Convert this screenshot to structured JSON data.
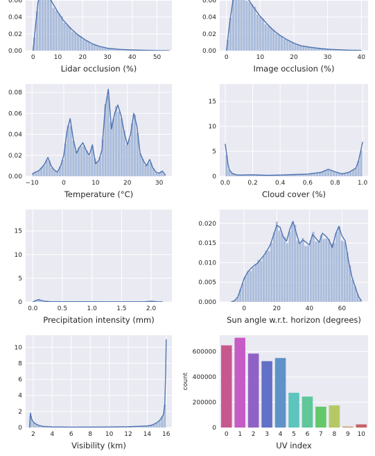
{
  "chart_data": [
    {
      "id": "lidar",
      "type": "histogram",
      "xlabel": "Lidar occlusion (%)",
      "ylabel": "",
      "xlim": [
        -3,
        56
      ],
      "ylim": [
        0,
        0.072
      ],
      "xticks": [
        "0",
        "10",
        "20",
        "30",
        "40",
        "50"
      ],
      "xtick_values": [
        0,
        10,
        20,
        30,
        40,
        50
      ],
      "yticks": [
        "0.00",
        "0.02",
        "0.04",
        "0.06"
      ],
      "ytick_values": [
        0,
        0.02,
        0.04,
        0.06
      ],
      "curve_x": [
        0,
        1,
        2,
        3,
        4,
        5,
        6,
        8,
        10,
        12,
        15,
        18,
        21,
        24,
        27,
        30,
        35,
        40,
        45,
        50,
        55
      ],
      "curve_y": [
        0.0,
        0.03,
        0.058,
        0.068,
        0.072,
        0.07,
        0.066,
        0.056,
        0.046,
        0.037,
        0.027,
        0.019,
        0.013,
        0.008,
        0.005,
        0.003,
        0.0015,
        0.0008,
        0.0004,
        0.0002,
        0.0001
      ]
    },
    {
      "id": "image",
      "type": "histogram",
      "xlabel": "Image occlusion (%)",
      "ylabel": "",
      "xlim": [
        -2,
        42
      ],
      "ylim": [
        0,
        0.072
      ],
      "xticks": [
        "0",
        "10",
        "20",
        "30",
        "40"
      ],
      "xtick_values": [
        0,
        10,
        20,
        30,
        40
      ],
      "yticks": [
        "0.00",
        "0.02",
        "0.04",
        "0.06"
      ],
      "ytick_values": [
        0,
        0.02,
        0.04,
        0.06
      ],
      "curve_x": [
        0,
        1,
        2,
        3,
        4,
        5,
        6,
        8,
        10,
        12,
        14,
        16,
        18,
        20,
        22,
        25,
        28,
        31,
        34,
        37,
        40
      ],
      "curve_y": [
        0.0,
        0.035,
        0.062,
        0.072,
        0.073,
        0.07,
        0.064,
        0.052,
        0.041,
        0.032,
        0.024,
        0.018,
        0.013,
        0.009,
        0.006,
        0.004,
        0.0025,
        0.0015,
        0.001,
        0.0005,
        0.0003
      ]
    },
    {
      "id": "temperature",
      "type": "histogram",
      "xlabel": "Temperature (°C)",
      "ylabel": "",
      "xlim": [
        -12,
        34
      ],
      "ylim": [
        0,
        0.088
      ],
      "xticks": [
        "−10",
        "0",
        "10",
        "20",
        "30"
      ],
      "xtick_values": [
        -10,
        0,
        10,
        20,
        30
      ],
      "yticks": [
        "0.00",
        "0.02",
        "0.04",
        "0.06",
        "0.08"
      ],
      "ytick_values": [
        0,
        0.02,
        0.04,
        0.06,
        0.08
      ],
      "curve_x": [
        -10,
        -9,
        -8,
        -7,
        -6,
        -5,
        -4,
        -3,
        -2,
        -1,
        0,
        1,
        2,
        3,
        4,
        5,
        6,
        7,
        8,
        9,
        10,
        11,
        12,
        13,
        14,
        15,
        16,
        17,
        18,
        19,
        20,
        21,
        22,
        23,
        24,
        25,
        26,
        27,
        28,
        29,
        30,
        31,
        32
      ],
      "curve_y": [
        0.002,
        0.004,
        0.005,
        0.008,
        0.012,
        0.018,
        0.01,
        0.006,
        0.004,
        0.01,
        0.02,
        0.043,
        0.055,
        0.035,
        0.022,
        0.028,
        0.032,
        0.025,
        0.02,
        0.03,
        0.012,
        0.015,
        0.025,
        0.065,
        0.083,
        0.045,
        0.06,
        0.068,
        0.058,
        0.042,
        0.03,
        0.04,
        0.06,
        0.048,
        0.022,
        0.015,
        0.01,
        0.016,
        0.008,
        0.004,
        0.003,
        0.005,
        0.001
      ]
    },
    {
      "id": "cloud",
      "type": "histogram",
      "xlabel": "Cloud cover (%)",
      "ylabel": "",
      "xlim": [
        -0.04,
        1.04
      ],
      "ylim": [
        0,
        18.5
      ],
      "xticks": [
        "0.0",
        "0.2",
        "0.4",
        "0.6",
        "0.8",
        "1.0"
      ],
      "xtick_values": [
        0,
        0.2,
        0.4,
        0.6,
        0.8,
        1.0
      ],
      "yticks": [
        "0",
        "5",
        "10",
        "15"
      ],
      "ytick_values": [
        0,
        5,
        10,
        15
      ],
      "curve_x": [
        0.0,
        0.01,
        0.02,
        0.03,
        0.05,
        0.08,
        0.1,
        0.2,
        0.3,
        0.4,
        0.5,
        0.6,
        0.7,
        0.75,
        0.8,
        0.85,
        0.9,
        0.95,
        0.97,
        0.99,
        1.0
      ],
      "curve_y": [
        6.5,
        4.5,
        2.5,
        1.3,
        0.6,
        0.3,
        0.25,
        0.3,
        0.2,
        0.25,
        0.35,
        0.45,
        0.8,
        1.4,
        0.9,
        0.5,
        0.8,
        1.6,
        3.0,
        5.5,
        6.9
      ]
    },
    {
      "id": "precipitation",
      "type": "histogram",
      "xlabel": "Precipitation intensity (mm)",
      "ylabel": "",
      "xlim": [
        -0.12,
        2.35
      ],
      "ylim": [
        0,
        19.5
      ],
      "xticks": [
        "0.0",
        "0.5",
        "1.0",
        "1.5",
        "2.0"
      ],
      "xtick_values": [
        0,
        0.5,
        1.0,
        1.5,
        2.0
      ],
      "yticks": [
        "0",
        "5",
        "10",
        "15"
      ],
      "ytick_values": [
        0,
        5,
        10,
        15
      ],
      "curve_x": [
        0,
        0.05,
        0.1,
        0.15,
        0.2,
        0.3,
        0.5,
        0.8,
        1.0,
        1.3,
        1.6,
        1.9,
        2.0,
        2.1,
        2.2
      ],
      "curve_y": [
        0.0,
        0.3,
        0.5,
        0.3,
        0.15,
        0.05,
        0.05,
        0.04,
        0.05,
        0.03,
        0.03,
        0.05,
        0.15,
        0.05,
        0.0
      ]
    },
    {
      "id": "sun",
      "type": "histogram",
      "xlabel": "Sun angle w.r.t. horizon (degrees)",
      "ylabel": "",
      "xlim": [
        -15,
        76
      ],
      "ylim": [
        0,
        0.0235
      ],
      "xticks": [
        "0",
        "20",
        "40",
        "60"
      ],
      "xtick_values": [
        0,
        20,
        40,
        60
      ],
      "yticks": [
        "0.000",
        "0.005",
        "0.010",
        "0.015",
        "0.020"
      ],
      "ytick_values": [
        0,
        0.005,
        0.01,
        0.015,
        0.02
      ],
      "curve_x": [
        -8,
        -6,
        -4,
        -2,
        0,
        2,
        4,
        6,
        8,
        10,
        12,
        14,
        16,
        18,
        20,
        22,
        24,
        26,
        28,
        30,
        32,
        34,
        36,
        38,
        40,
        42,
        44,
        46,
        48,
        50,
        52,
        54,
        56,
        58,
        60,
        62,
        64,
        66,
        68,
        70,
        72
      ],
      "curve_y": [
        0.0,
        0.0003,
        0.0012,
        0.0035,
        0.006,
        0.0075,
        0.0085,
        0.0092,
        0.0098,
        0.0108,
        0.0118,
        0.013,
        0.0145,
        0.017,
        0.0195,
        0.019,
        0.0165,
        0.0155,
        0.0185,
        0.0205,
        0.0175,
        0.0148,
        0.0158,
        0.0152,
        0.0145,
        0.0172,
        0.0162,
        0.0152,
        0.0175,
        0.0168,
        0.0158,
        0.0138,
        0.0172,
        0.0192,
        0.0168,
        0.0155,
        0.0105,
        0.0065,
        0.004,
        0.0015,
        0.0002
      ]
    },
    {
      "id": "visibility",
      "type": "histogram",
      "xlabel": "Visibility (km)",
      "ylabel": "",
      "xlim": [
        1.2,
        16.6
      ],
      "ylim": [
        0,
        11.5
      ],
      "xticks": [
        "2",
        "4",
        "6",
        "8",
        "10",
        "12",
        "14",
        "16"
      ],
      "xtick_values": [
        2,
        4,
        6,
        8,
        10,
        12,
        14,
        16
      ],
      "yticks": [
        "0",
        "2",
        "4",
        "6",
        "8",
        "10"
      ],
      "ytick_values": [
        0,
        2,
        4,
        6,
        8,
        10
      ],
      "curve_x": [
        1.6,
        1.7,
        1.8,
        1.9,
        2.0,
        2.2,
        2.5,
        3.0,
        4.0,
        6.0,
        8.0,
        10.0,
        12.0,
        14.0,
        14.5,
        15.0,
        15.4,
        15.7,
        15.85,
        15.95,
        16.0
      ],
      "curve_y": [
        0.0,
        1.8,
        1.2,
        0.9,
        0.7,
        0.5,
        0.3,
        0.15,
        0.08,
        0.05,
        0.06,
        0.07,
        0.1,
        0.2,
        0.3,
        0.6,
        1.0,
        1.6,
        2.8,
        7.0,
        11.0
      ]
    },
    {
      "id": "uv",
      "type": "bar",
      "xlabel": "UV index",
      "ylabel": "count",
      "ylim": [
        0,
        730000
      ],
      "categories": [
        "0",
        "1",
        "2",
        "3",
        "4",
        "5",
        "6",
        "7",
        "8",
        "9",
        "10"
      ],
      "values": [
        650000,
        710000,
        585000,
        525000,
        550000,
        275000,
        245000,
        165000,
        175000,
        8000,
        25000
      ],
      "colors": [
        "#c8578e",
        "#c65bc5",
        "#9162c6",
        "#6270c5",
        "#5f92c7",
        "#5dc4be",
        "#5fc79a",
        "#63c869",
        "#b5c866",
        "#c89a66",
        "#c8626a"
      ],
      "yticks": [
        "0",
        "200000",
        "400000",
        "600000"
      ],
      "ytick_values": [
        0,
        200000,
        400000,
        600000
      ]
    }
  ],
  "style": {
    "axes_bg": "#eaeaf2",
    "grid": "#ffffff",
    "hist_fill": "#a4b8d8",
    "line": "#4c72b0"
  }
}
